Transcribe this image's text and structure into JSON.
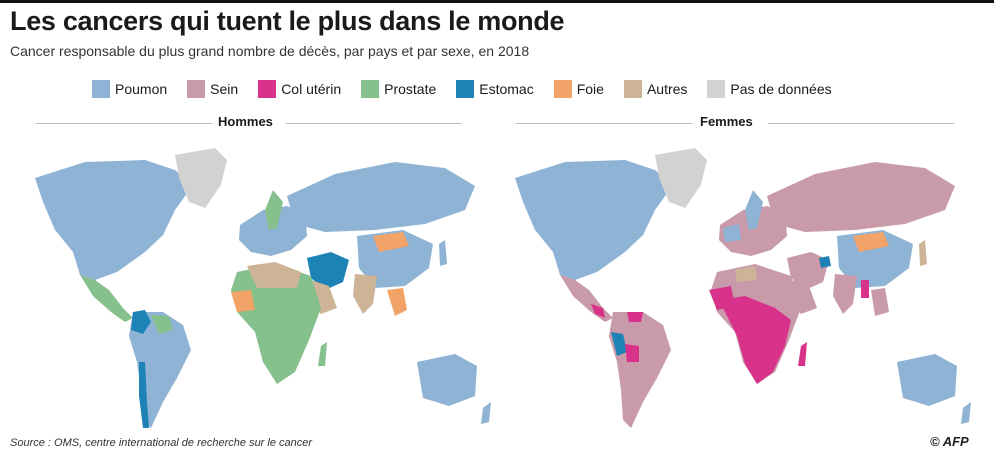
{
  "title": "Les cancers qui tuent le plus dans le monde",
  "subtitle": "Cancer responsable du plus grand nombre de décès, par pays et par sexe, en 2018",
  "legend": [
    {
      "label": "Poumon",
      "color": "#8fb3d4"
    },
    {
      "label": "Sein",
      "color": "#c99aa9"
    },
    {
      "label": "Col utérin",
      "color": "#d8328b"
    },
    {
      "label": "Prostate",
      "color": "#86c08c"
    },
    {
      "label": "Estomac",
      "color": "#1d82b5"
    },
    {
      "label": "Foie",
      "color": "#f2a468"
    },
    {
      "label": "Autres",
      "color": "#cdb497"
    },
    {
      "label": "Pas de données",
      "color": "#d2d2d2"
    }
  ],
  "panels": {
    "men": {
      "title": "Hommes"
    },
    "women": {
      "title": "Femmes"
    }
  },
  "source": "Source : OMS, centre international de recherche sur le cancer",
  "credit": "© AFP"
}
